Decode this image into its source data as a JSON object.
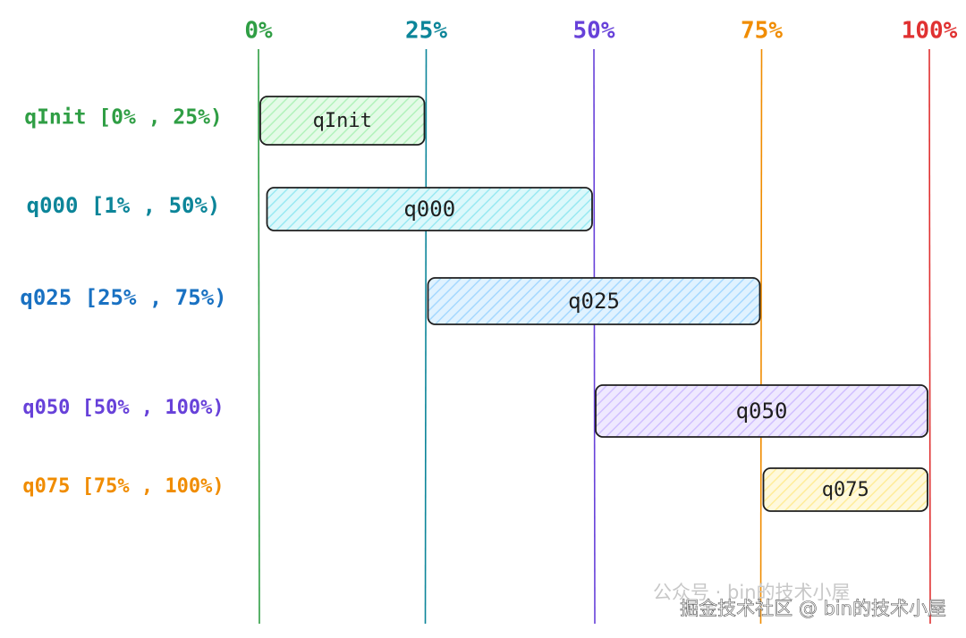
{
  "chart_data": {
    "type": "range",
    "xlim": [
      0,
      100
    ],
    "xticks": [
      {
        "value": 0,
        "label": "0%"
      },
      {
        "value": 25,
        "label": "25%"
      },
      {
        "value": 50,
        "label": "50%"
      },
      {
        "value": 75,
        "label": "75%"
      },
      {
        "value": 100,
        "label": "100%"
      }
    ],
    "tick_colors": [
      "#2f9e44",
      "#0c8599",
      "#6741d9",
      "#f08c00",
      "#e03131"
    ],
    "categories": [
      "qInit [0% , 25%)",
      "q000 [1% , 50%)",
      "q025 [25% , 75%)",
      "q050 [50% , 100%)",
      "q075 [75% , 100%)"
    ],
    "bars": [
      {
        "name": "qInit",
        "start": 0,
        "end": 25,
        "color": "#2f9e44",
        "fill": "#b2f2bb"
      },
      {
        "name": "q000",
        "start": 1,
        "end": 50,
        "color": "#0c8599",
        "fill": "#99e9f2"
      },
      {
        "name": "q025",
        "start": 25,
        "end": 75,
        "color": "#1971c2",
        "fill": "#a5d8ff"
      },
      {
        "name": "q050",
        "start": 50,
        "end": 100,
        "color": "#6741d9",
        "fill": "#d0bfff"
      },
      {
        "name": "q075",
        "start": 75,
        "end": 100,
        "color": "#f08c00",
        "fill": "#ffec99"
      }
    ],
    "watermark": "掘金技术社区 @ bin的技术小屋",
    "faded_watermark": "公众号 · bin的技术小屋"
  }
}
